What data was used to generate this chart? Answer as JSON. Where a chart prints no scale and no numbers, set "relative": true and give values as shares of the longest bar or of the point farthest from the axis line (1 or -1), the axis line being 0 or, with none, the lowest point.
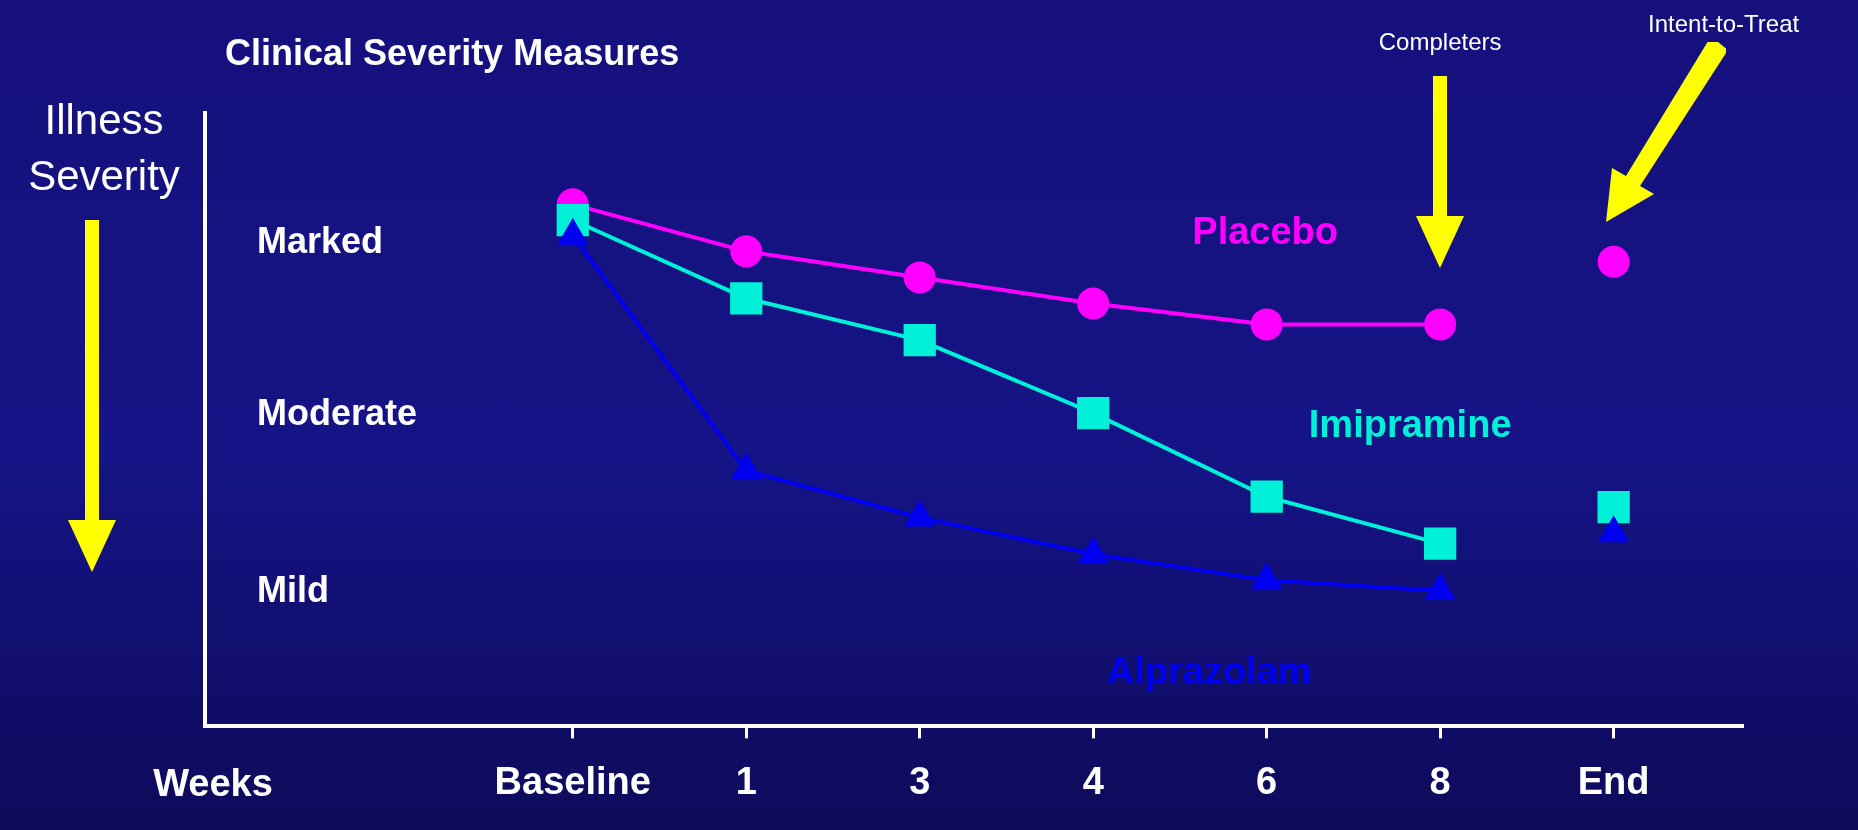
{
  "chart_data": {
    "type": "line",
    "title": "Clinical Severity Measures",
    "categories": [
      "Baseline",
      "1",
      "3",
      "4",
      "6",
      "8",
      "End"
    ],
    "relative": true,
    "grid": false,
    "legend": false,
    "series": [
      {
        "name": "Placebo",
        "color": "#ff00ff",
        "marker": "circle",
        "values": [
          1,
          0.91,
          0.86,
          0.81,
          0.77,
          0.77,
          null
        ]
      },
      {
        "name": "Imipramine",
        "color": "#00f0d8",
        "marker": "square",
        "values": [
          0.97,
          0.82,
          0.74,
          0.6,
          0.44,
          0.35,
          null
        ]
      },
      {
        "name": "Alprazolam",
        "color": "#0000f0",
        "marker": "triangle",
        "values": [
          0.94,
          0.49,
          0.4,
          0.33,
          0.28,
          0.26,
          null
        ]
      },
      {
        "type": "scatter",
        "color": "#ff00ff",
        "marker": "circle",
        "values": [
          null,
          null,
          null,
          null,
          null,
          null,
          0.89
        ]
      },
      {
        "type": "scatter",
        "color": "#00f0d8",
        "marker": "square",
        "values": [
          null,
          null,
          null,
          null,
          null,
          null,
          0.42
        ]
      },
      {
        "type": "scatter",
        "color": "#0000f0",
        "marker": "triangle",
        "values": [
          null,
          null,
          null,
          null,
          null,
          null,
          0.37
        ]
      }
    ],
    "annotations": [
      "Illness Severity",
      "Weeks",
      "Marked",
      "Moderate",
      "Mild",
      "Completers",
      "Intent-to-Treat"
    ]
  }
}
